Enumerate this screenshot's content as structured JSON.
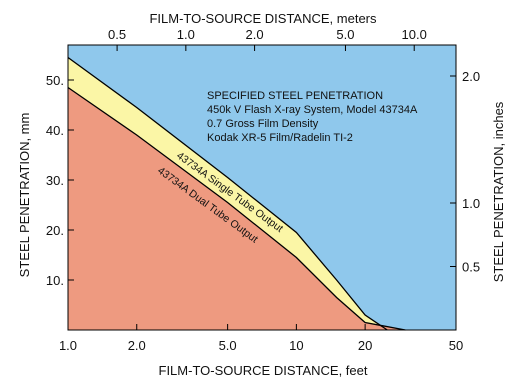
{
  "chart_data": {
    "type": "area",
    "x_scale": "log",
    "y_scale": "linear",
    "xlim": [
      1.0,
      50
    ],
    "ylim": [
      0,
      57
    ],
    "x_top_lim_meters": [
      0.3048,
      15.24
    ],
    "y_right_lim_inches": [
      0,
      2.244
    ],
    "grid": false,
    "xlabel_bottom": "FILM-TO-SOURCE DISTANCE, feet",
    "xlabel_top": "FILM-TO-SOURCE DISTANCE, meters",
    "ylabel_left": "STEEL PENETRATION, mm",
    "ylabel_right": "STEEL PENETRATION, inches",
    "x_ticks_bottom": [
      {
        "value": 1.0,
        "label": "1.0"
      },
      {
        "value": 2.0,
        "label": "2.0"
      },
      {
        "value": 5.0,
        "label": "5.0"
      },
      {
        "value": 10,
        "label": "10"
      },
      {
        "value": 20,
        "label": "20"
      },
      {
        "value": 50,
        "label": "50"
      }
    ],
    "x_ticks_top": [
      {
        "value": 0.5,
        "label": "0.5"
      },
      {
        "value": 1.0,
        "label": "1.0"
      },
      {
        "value": 2.0,
        "label": "2.0"
      },
      {
        "value": 5.0,
        "label": "5.0"
      },
      {
        "value": 10.0,
        "label": "10.0"
      }
    ],
    "y_ticks_left": [
      {
        "value": 10,
        "label": "10."
      },
      {
        "value": 20,
        "label": "20."
      },
      {
        "value": 30,
        "label": "30."
      },
      {
        "value": 40,
        "label": "40."
      },
      {
        "value": 50,
        "label": "50."
      }
    ],
    "y_ticks_right": [
      {
        "value": 0.5,
        "label": "0.5"
      },
      {
        "value": 1.0,
        "label": "1.0"
      },
      {
        "value": 2.0,
        "label": "2.0"
      }
    ],
    "annotation_lines": [
      "SPECIFIED STEEL PENETRATION",
      "450k V Flash X-ray System, Model 43734A",
      "0.7 Gross Film Density",
      "Kodak XR-5 Film/Radelin TI-2"
    ],
    "series": [
      {
        "name": "43734A Single Tube Output",
        "color": "#000000",
        "x": [
          1.0,
          2.0,
          5.0,
          10,
          15,
          20,
          25
        ],
        "y": [
          54.5,
          44.5,
          30.5,
          19.5,
          10,
          3,
          0
        ]
      },
      {
        "name": "43734A Dual Tube Output",
        "color": "#000000",
        "x": [
          1.0,
          2.0,
          5.0,
          10,
          15,
          20,
          30
        ],
        "y": [
          48.5,
          39,
          25.5,
          14.5,
          6.5,
          1.5,
          0
        ]
      }
    ],
    "regions": [
      {
        "name": "above single tube",
        "color": "#8fc8ec"
      },
      {
        "name": "between curves",
        "color": "#fbf6a6"
      },
      {
        "name": "below dual tube",
        "color": "#ee9a80"
      }
    ]
  }
}
